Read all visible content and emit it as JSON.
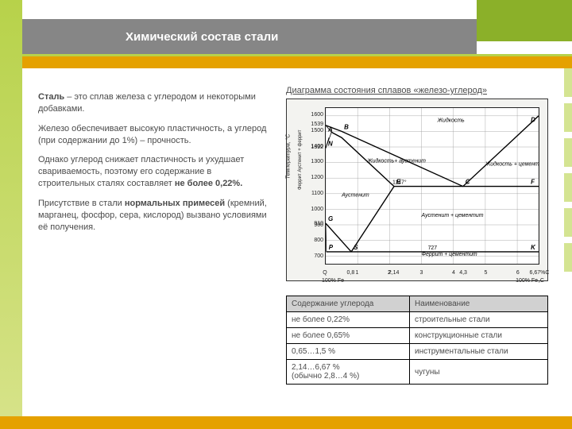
{
  "title": "Химический состав стали",
  "paragraphs": {
    "p1a": "Сталь",
    "p1b": " – это сплав железа с углеродом и некоторыми добавками.",
    "p2": "Железо обеспечивает высокую пластичность, а углерод (при содержании до 1%) – прочность.",
    "p3a": "Однако углерод снижает пластичность и ухудшает свариваемость, поэтому его содержание в строительных сталях составляет ",
    "p3b": "не более 0,22%.",
    "p4a": "Присутствие в стали ",
    "p4b": "нормальных примесей",
    "p4c": " (кремний, марганец, фосфор, сера, кислород) вызвано условиями её получения."
  },
  "diagram": {
    "caption": "Диаграмма состояния сплавов «железо-углерод»",
    "y_label": "Температура, °C",
    "y_label_left": "Феррит  Аустенит + феррит",
    "y_ticks": [
      700,
      800,
      900,
      910,
      1000,
      1100,
      1200,
      1300,
      1392,
      1400,
      1500,
      1539,
      1600
    ],
    "y_min": 650,
    "y_max": 1650,
    "x_ticks": [
      0,
      0.8,
      1,
      2,
      2.14,
      3,
      4,
      4.3,
      5,
      6,
      6.67
    ],
    "x_labels_shown": [
      "Q",
      "0,8",
      "1",
      "2",
      "2,14",
      "3",
      "4",
      "4,3",
      "5",
      "6",
      "6,67%C"
    ],
    "x_min": 0,
    "x_max": 6.67,
    "x_end_left": "100% Fe",
    "x_end_right": "100% Fe₃C",
    "key_temps": {
      "eutectoid": 727,
      "eutectic": 1147
    },
    "points": {
      "A": {
        "x": 0,
        "y": 1539
      },
      "B": {
        "x": 0.5,
        "y": 1500
      },
      "D": {
        "x": 6.67,
        "y": 1600
      },
      "N": {
        "x": 0,
        "y": 1392
      },
      "C": {
        "x": 4.3,
        "y": 1147
      },
      "E": {
        "x": 2.14,
        "y": 1147
      },
      "F": {
        "x": 6.67,
        "y": 1147
      },
      "G": {
        "x": 0,
        "y": 910
      },
      "S": {
        "x": 0.8,
        "y": 727
      },
      "P": {
        "x": 0.02,
        "y": 727
      },
      "K": {
        "x": 6.67,
        "y": 727
      }
    },
    "regions": {
      "liquid": "Жидкость",
      "liquid_austenite": "Жидкость + аустенит",
      "liquid_cementite": "Жидкость + цементит",
      "austenite": "Аустенит",
      "austenite_cementite": "Аустенит + цементит",
      "ferrite_cementite": "Феррит + цементит"
    },
    "colors": {
      "bg": "#f3f3f0",
      "plot_bg": "#ffffff",
      "grid": "#888888",
      "curve": "#000000",
      "text": "#222222"
    }
  },
  "table": {
    "headers": [
      "Содержание углерода",
      "Наименование"
    ],
    "rows": [
      [
        "не более 0,22%",
        "строительные стали"
      ],
      [
        "не более 0,65%",
        "конструкционные стали"
      ],
      [
        "0,65…1,5 %",
        "инструментальные стали"
      ],
      [
        "2,14…6,67 %\n(обычно 2,8…4 %)",
        "чугуны"
      ]
    ]
  }
}
